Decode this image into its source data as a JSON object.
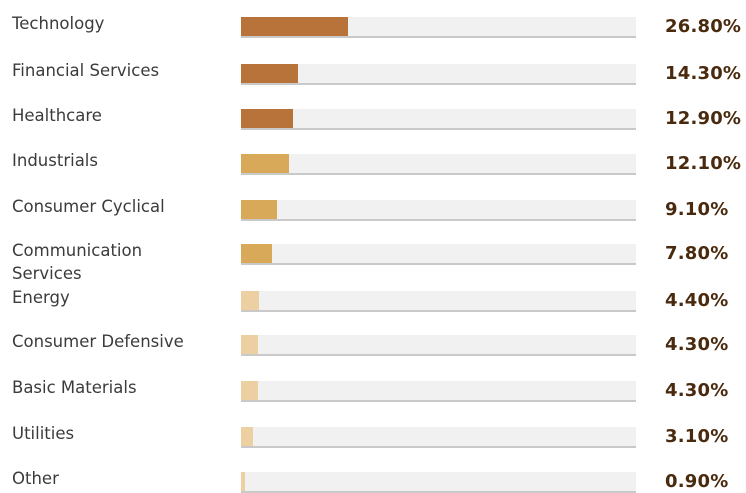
{
  "allocation": {
    "max_percent": 26.8,
    "sectors": [
      {
        "label": "Technology",
        "value_text": "26.80%",
        "percent": 26.8,
        "color": "#b8733a"
      },
      {
        "label": "Financial Services",
        "value_text": "14.30%",
        "percent": 14.3,
        "color": "#b8733a"
      },
      {
        "label": "Healthcare",
        "value_text": "12.90%",
        "percent": 12.9,
        "color": "#b8733a"
      },
      {
        "label": "Industrials",
        "value_text": "12.10%",
        "percent": 12.1,
        "color": "#d9a95a"
      },
      {
        "label": "Consumer Cyclical",
        "value_text": "9.10%",
        "percent": 9.1,
        "color": "#d9a95a"
      },
      {
        "label": "Communication Services",
        "value_text": "7.80%",
        "percent": 7.8,
        "color": "#d9a95a"
      },
      {
        "label": "Energy",
        "value_text": "4.40%",
        "percent": 4.4,
        "color": "#edd0a1"
      },
      {
        "label": "Consumer Defensive",
        "value_text": "4.30%",
        "percent": 4.3,
        "color": "#edd0a1"
      },
      {
        "label": "Basic Materials",
        "value_text": "4.30%",
        "percent": 4.3,
        "color": "#edd0a1"
      },
      {
        "label": "Utilities",
        "value_text": "3.10%",
        "percent": 3.1,
        "color": "#edd0a1"
      },
      {
        "label": "Other",
        "value_text": "0.90%",
        "percent": 0.9,
        "color": "#edd0a1"
      }
    ]
  }
}
